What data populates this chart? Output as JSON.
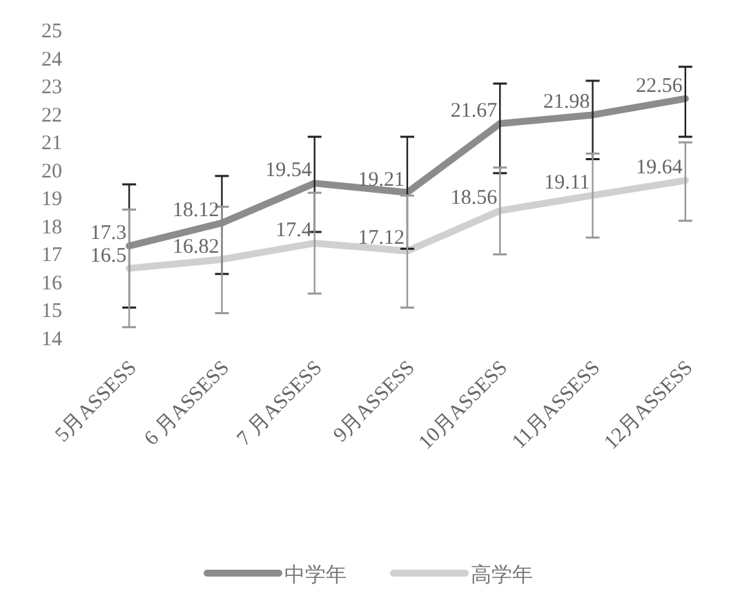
{
  "chart_data": {
    "type": "line",
    "categories": [
      "5月ASSESS",
      "6 月ASSESS",
      "7 月ASSESS",
      "9月ASSESS",
      "10月ASSESS",
      "11月ASSESS",
      "12月ASSESS"
    ],
    "series": [
      {
        "name": "中学年",
        "color": "#8c8c8c",
        "values": [
          17.3,
          18.12,
          19.54,
          19.21,
          21.67,
          21.98,
          22.56
        ],
        "errors": [
          [
            15.1,
            19.5
          ],
          [
            16.3,
            19.8
          ],
          [
            17.8,
            21.2
          ],
          [
            17.2,
            21.2
          ],
          [
            19.9,
            23.1
          ],
          [
            20.4,
            23.2
          ],
          [
            21.2,
            23.7
          ]
        ]
      },
      {
        "name": "高学年",
        "color": "#d0d0d0",
        "values": [
          16.5,
          16.82,
          17.4,
          17.12,
          18.56,
          19.11,
          19.64
        ],
        "errors": [
          [
            14.4,
            18.6
          ],
          [
            14.9,
            18.7
          ],
          [
            15.6,
            19.2
          ],
          [
            15.1,
            19.1
          ],
          [
            17.0,
            20.1
          ],
          [
            17.6,
            20.6
          ],
          [
            18.2,
            21.0
          ]
        ]
      }
    ],
    "ylim": [
      14,
      25
    ],
    "yticks": [
      14,
      15,
      16,
      17,
      18,
      19,
      20,
      21,
      22,
      23,
      24,
      25
    ],
    "grid": false,
    "legend": "bottom",
    "data_labels": true,
    "marker": "none",
    "line_style": "solid"
  }
}
